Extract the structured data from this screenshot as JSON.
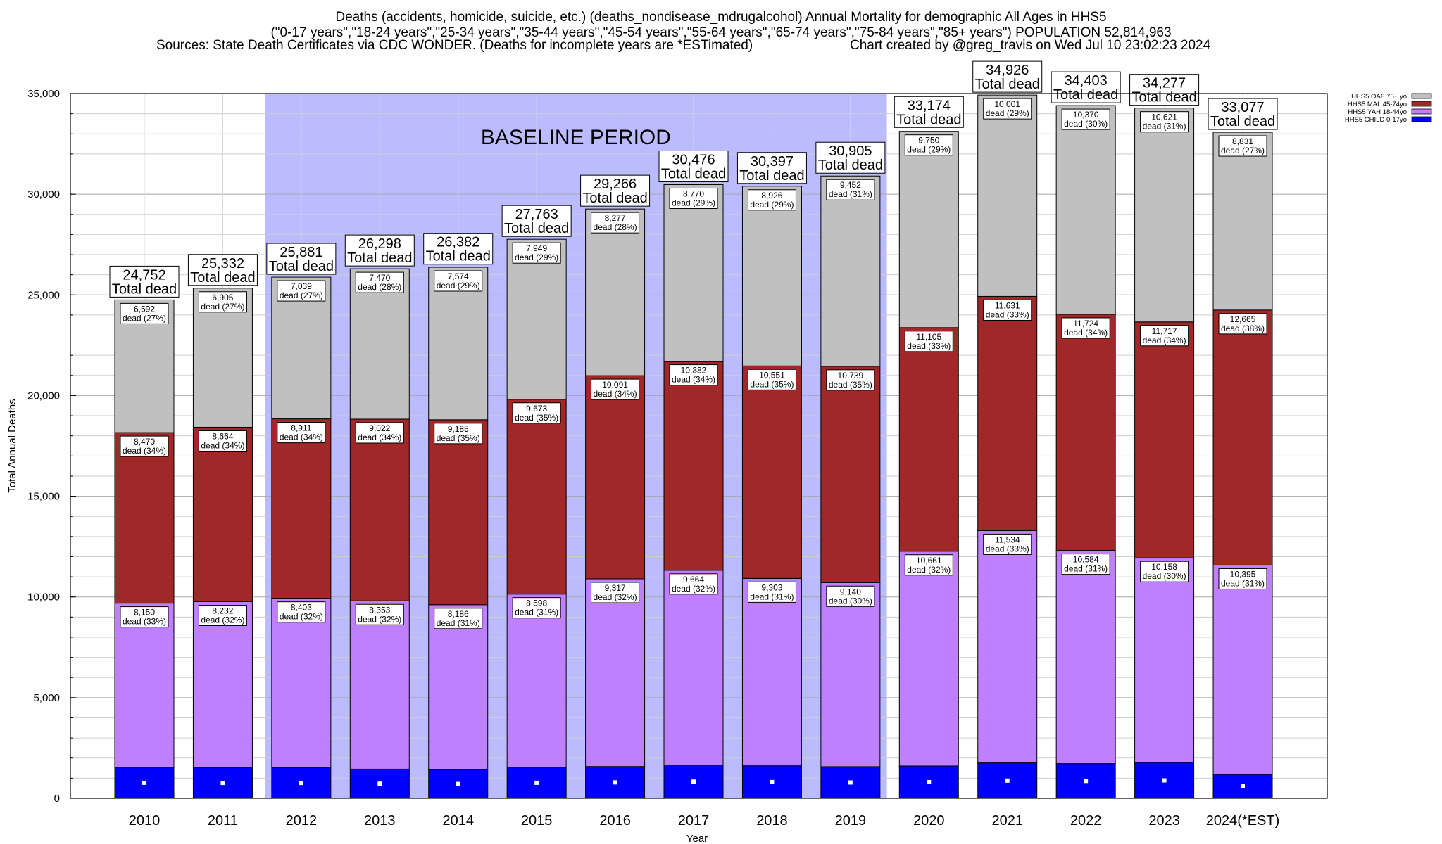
{
  "header": {
    "line1": "Deaths (accidents, homicide, suicide, etc.) (deaths_nondisease_mdrugalcohol) Annual Mortality for demographic All Ages in HHS5",
    "line2": "(\"0-17 years\",\"18-24 years\",\"25-34 years\",\"35-44 years\",\"45-54 years\",\"55-64 years\",\"65-74 years\",\"75-84 years\",\"85+ years\") POPULATION 52,814,963",
    "line3_left": "Sources: State Death Certificates via CDC WONDER. (Deaths for incomplete years are *ESTimated)",
    "line3_right": "Chart created by @greg_travis on Wed Jul 10 23:02:23 2024"
  },
  "chart_data": {
    "type": "bar",
    "stacked": true,
    "xlabel": "Year",
    "ylabel": "Total Annual Deaths",
    "ylim": [
      0,
      35000
    ],
    "yticks": [
      0,
      5000,
      10000,
      15000,
      20000,
      25000,
      30000,
      35000
    ],
    "ytick_labels": [
      "0",
      "5,000",
      "10,000",
      "15,000",
      "20,000",
      "25,000",
      "30,000",
      "35,000"
    ],
    "categories": [
      "2010",
      "2011",
      "2012",
      "2013",
      "2014",
      "2015",
      "2016",
      "2017",
      "2018",
      "2019",
      "2020",
      "2021",
      "2022",
      "2023",
      "2024(*EST)"
    ],
    "baseline_region": {
      "label": "BASELINE PERIOD",
      "from": "2012",
      "to": "2019",
      "color": "#bbbbff"
    },
    "series": [
      {
        "name": "HHS5 CHILD 0-17yo",
        "color": "#0000ff",
        "values": [
          1540,
          1531,
          1528,
          1453,
          1427,
          1543,
          1581,
          1660,
          1617,
          1574,
          1608,
          1760,
          1725,
          1781,
          1186
        ]
      },
      {
        "name": "HHS5 YAH 18-44yo",
        "color": "#bf80ff",
        "values": [
          8150,
          8232,
          8403,
          8353,
          8186,
          8598,
          9317,
          9664,
          9303,
          9140,
          10661,
          11534,
          10584,
          10158,
          10395
        ],
        "labels": [
          "8,150\ndead (33%)",
          "8,232\ndead (32%)",
          "8,403\ndead (32%)",
          "8,353\ndead (32%)",
          "8,186\ndead (31%)",
          "8,598\ndead (31%)",
          "9,317\ndead (32%)",
          "9,664\ndead (32%)",
          "9,303\ndead (31%)",
          "9,140\ndead (30%)",
          "10,661\ndead (32%)",
          "11,534\ndead (33%)",
          "10,584\ndead (31%)",
          "10,158\ndead (30%)",
          "10,395\ndead (31%)"
        ]
      },
      {
        "name": "HHS5 MAL 45-74yo",
        "color": "#a02828",
        "values": [
          8470,
          8664,
          8911,
          9022,
          9185,
          9673,
          10091,
          10382,
          10551,
          10739,
          11105,
          11631,
          11724,
          11717,
          12665
        ],
        "labels": [
          "8,470\ndead (34%)",
          "8,664\ndead (34%)",
          "8,911\ndead (34%)",
          "9,022\ndead (34%)",
          "9,185\ndead (35%)",
          "9,673\ndead (35%)",
          "10,091\ndead (34%)",
          "10,382\ndead (34%)",
          "10,551\ndead (35%)",
          "10,739\ndead (35%)",
          "11,105\ndead (33%)",
          "11,631\ndead (33%)",
          "11,724\ndead (34%)",
          "11,717\ndead (34%)",
          "12,665\ndead (38%)"
        ]
      },
      {
        "name": "HHS5 OAF 75+ yo",
        "color": "#c0c0c0",
        "values": [
          6592,
          6905,
          7039,
          7470,
          7574,
          7949,
          8277,
          8770,
          8926,
          9452,
          9750,
          10001,
          10370,
          10621,
          8831
        ],
        "labels": [
          "6,592\ndead (27%)",
          "6,905\ndead (27%)",
          "7,039\ndead (27%)",
          "7,470\ndead (28%)",
          "7,574\ndead (29%)",
          "7,949\ndead (29%)",
          "8,277\ndead (28%)",
          "8,770\ndead (29%)",
          "8,926\ndead (29%)",
          "9,452\ndead (31%)",
          "9,750\ndead (29%)",
          "10,001\ndead (29%)",
          "10,370\ndead (30%)",
          "10,621\ndead (31%)",
          "8,831\ndead (27%)"
        ]
      }
    ],
    "totals": [
      24752,
      25332,
      25881,
      26298,
      26382,
      27763,
      29266,
      30476,
      30397,
      30905,
      33174,
      34926,
      34403,
      34277,
      33077
    ],
    "total_labels": [
      "24,752",
      "25,332",
      "25,881",
      "26,298",
      "26,382",
      "27,763",
      "29,266",
      "30,476",
      "30,397",
      "30,905",
      "33,174",
      "34,926",
      "34,403",
      "34,277",
      "33,077"
    ],
    "total_suffix": "Total dead",
    "legend": {
      "placement": "top-right",
      "entries": [
        "HHS5 OAF 75+ yo",
        "HHS5 MAL 45-74yo",
        "HHS5 YAH 18-44yo",
        "HHS5 CHILD 0-17yo"
      ]
    }
  }
}
